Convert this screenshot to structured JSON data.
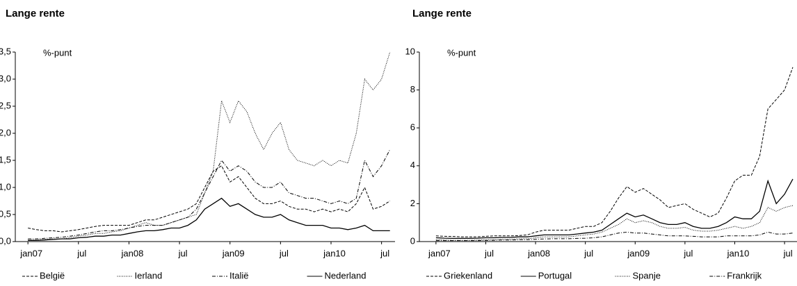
{
  "chart_data": [
    {
      "type": "line",
      "title": "Lange rente",
      "unit": "%-punt",
      "x": [
        0,
        1,
        2,
        3,
        4,
        5,
        6,
        7,
        8,
        9,
        10,
        11,
        12,
        13,
        14,
        15,
        16,
        17,
        18,
        19,
        20,
        21,
        22,
        23,
        24,
        25,
        26,
        27,
        28,
        29,
        30,
        31,
        32,
        33,
        34,
        35,
        36,
        37,
        38,
        39,
        40,
        41,
        42,
        43
      ],
      "xlim": [
        -1.5,
        43.6
      ],
      "xticks": [
        {
          "value": 0,
          "label": "jan07"
        },
        {
          "value": 6,
          "label": "jul"
        },
        {
          "value": 12,
          "label": "jan08"
        },
        {
          "value": 18,
          "label": "jul"
        },
        {
          "value": 24,
          "label": "jan09"
        },
        {
          "value": 30,
          "label": "jul"
        },
        {
          "value": 36,
          "label": "jan10"
        },
        {
          "value": 42,
          "label": "jul"
        }
      ],
      "ylim": [
        0,
        3.5
      ],
      "yticks": [
        {
          "value": 0,
          "label": "0,0"
        },
        {
          "value": 0.5,
          "label": "0,5"
        },
        {
          "value": 1,
          "label": "1,0"
        },
        {
          "value": 1.5,
          "label": "1,5"
        },
        {
          "value": 2,
          "label": "2,0"
        },
        {
          "value": 2.5,
          "label": "2,5"
        },
        {
          "value": 3,
          "label": "3,0"
        },
        {
          "value": 3.5,
          "label": "3,5"
        }
      ],
      "legend": "bottom",
      "series": [
        {
          "name": "België",
          "color": "#000000",
          "dash": "dashed",
          "values": [
            0.25,
            0.22,
            0.2,
            0.2,
            0.18,
            0.2,
            0.22,
            0.25,
            0.28,
            0.3,
            0.3,
            0.3,
            0.3,
            0.35,
            0.4,
            0.4,
            0.45,
            0.5,
            0.55,
            0.6,
            0.7,
            1.0,
            1.3,
            1.4,
            1.1,
            1.2,
            1.0,
            0.8,
            0.7,
            0.7,
            0.75,
            0.65,
            0.6,
            0.6,
            0.55,
            0.6,
            0.55,
            0.6,
            0.55,
            0.7,
            1.0,
            0.6,
            0.65,
            0.75
          ]
        },
        {
          "name": "Ierland",
          "color": "#000000",
          "dash": "dotted",
          "values": [
            0.03,
            0.03,
            0.04,
            0.05,
            0.05,
            0.07,
            0.1,
            0.12,
            0.15,
            0.15,
            0.18,
            0.2,
            0.25,
            0.3,
            0.35,
            0.3,
            0.3,
            0.35,
            0.4,
            0.45,
            0.5,
            0.9,
            1.3,
            2.6,
            2.2,
            2.6,
            2.4,
            2.0,
            1.7,
            2.0,
            2.2,
            1.7,
            1.5,
            1.45,
            1.4,
            1.5,
            1.4,
            1.5,
            1.45,
            2.0,
            3.0,
            2.8,
            3.0,
            3.5
          ]
        },
        {
          "name": "Italië",
          "color": "#000000",
          "dash": "dashdot",
          "values": [
            0.05,
            0.05,
            0.06,
            0.07,
            0.08,
            0.1,
            0.12,
            0.15,
            0.18,
            0.2,
            0.2,
            0.22,
            0.25,
            0.28,
            0.3,
            0.3,
            0.3,
            0.35,
            0.4,
            0.45,
            0.6,
            0.9,
            1.2,
            1.5,
            1.3,
            1.4,
            1.3,
            1.1,
            1.0,
            1.0,
            1.1,
            0.9,
            0.85,
            0.8,
            0.8,
            0.75,
            0.7,
            0.75,
            0.7,
            0.8,
            1.5,
            1.2,
            1.4,
            1.7
          ]
        },
        {
          "name": "Nederland",
          "color": "#000000",
          "dash": "solid",
          "values": [
            0.02,
            0.02,
            0.03,
            0.04,
            0.05,
            0.05,
            0.07,
            0.08,
            0.1,
            0.1,
            0.12,
            0.12,
            0.15,
            0.18,
            0.2,
            0.2,
            0.22,
            0.25,
            0.25,
            0.3,
            0.4,
            0.6,
            0.7,
            0.8,
            0.65,
            0.7,
            0.6,
            0.5,
            0.45,
            0.45,
            0.5,
            0.4,
            0.35,
            0.3,
            0.3,
            0.3,
            0.25,
            0.25,
            0.22,
            0.25,
            0.3,
            0.2,
            0.2,
            0.2
          ]
        }
      ]
    },
    {
      "type": "line",
      "title": "Lange rente",
      "unit": "%-punt",
      "x": [
        0,
        1,
        2,
        3,
        4,
        5,
        6,
        7,
        8,
        9,
        10,
        11,
        12,
        13,
        14,
        15,
        16,
        17,
        18,
        19,
        20,
        21,
        22,
        23,
        24,
        25,
        26,
        27,
        28,
        29,
        30,
        31,
        32,
        33,
        34,
        35,
        36,
        37,
        38,
        39,
        40,
        41,
        42,
        43
      ],
      "xlim": [
        -2,
        43.5
      ],
      "xticks": [
        {
          "value": 0,
          "label": "jan07"
        },
        {
          "value": 6,
          "label": "jul"
        },
        {
          "value": 12,
          "label": "jan08"
        },
        {
          "value": 18,
          "label": "jul"
        },
        {
          "value": 24,
          "label": "jan09"
        },
        {
          "value": 30,
          "label": "jul"
        },
        {
          "value": 36,
          "label": "jan10"
        },
        {
          "value": 42,
          "label": "jul"
        }
      ],
      "ylim": [
        0,
        10
      ],
      "yticks": [
        0,
        2,
        4,
        6,
        8,
        10
      ],
      "legend": "bottom",
      "series": [
        {
          "name": "Griekenland",
          "color": "#000000",
          "dash": "dashed",
          "values": [
            0.3,
            0.28,
            0.27,
            0.25,
            0.25,
            0.25,
            0.28,
            0.3,
            0.3,
            0.3,
            0.32,
            0.35,
            0.5,
            0.6,
            0.6,
            0.6,
            0.6,
            0.7,
            0.8,
            0.8,
            1.0,
            1.6,
            2.3,
            2.9,
            2.6,
            2.8,
            2.5,
            2.2,
            1.8,
            1.9,
            2.0,
            1.7,
            1.5,
            1.3,
            1.5,
            2.3,
            3.2,
            3.5,
            3.5,
            4.5,
            7.0,
            7.5,
            8.0,
            9.2
          ]
        },
        {
          "name": "Portugal",
          "color": "#000000",
          "dash": "solid",
          "values": [
            0.2,
            0.18,
            0.17,
            0.17,
            0.17,
            0.18,
            0.2,
            0.2,
            0.22,
            0.22,
            0.25,
            0.25,
            0.3,
            0.35,
            0.35,
            0.35,
            0.35,
            0.4,
            0.45,
            0.5,
            0.6,
            0.9,
            1.2,
            1.5,
            1.3,
            1.4,
            1.2,
            1.0,
            0.9,
            0.9,
            1.0,
            0.8,
            0.7,
            0.7,
            0.8,
            1.0,
            1.3,
            1.2,
            1.2,
            1.6,
            3.2,
            2.0,
            2.5,
            3.3
          ]
        },
        {
          "name": "Spanje",
          "color": "#000000",
          "dash": "dotted",
          "values": [
            0.1,
            0.08,
            0.07,
            0.07,
            0.07,
            0.08,
            0.1,
            0.1,
            0.12,
            0.12,
            0.15,
            0.15,
            0.2,
            0.25,
            0.25,
            0.25,
            0.25,
            0.3,
            0.35,
            0.4,
            0.5,
            0.7,
            0.9,
            1.2,
            1.0,
            1.1,
            1.0,
            0.8,
            0.7,
            0.7,
            0.75,
            0.6,
            0.55,
            0.55,
            0.6,
            0.7,
            0.8,
            0.7,
            0.8,
            1.0,
            1.8,
            1.6,
            1.8,
            1.9
          ]
        },
        {
          "name": "Frankrijk",
          "color": "#000000",
          "dash": "dashdot",
          "values": [
            0.05,
            0.05,
            0.05,
            0.05,
            0.05,
            0.05,
            0.06,
            0.07,
            0.08,
            0.08,
            0.1,
            0.1,
            0.12,
            0.14,
            0.15,
            0.15,
            0.15,
            0.17,
            0.18,
            0.2,
            0.25,
            0.35,
            0.45,
            0.5,
            0.45,
            0.45,
            0.4,
            0.35,
            0.3,
            0.3,
            0.3,
            0.28,
            0.25,
            0.25,
            0.25,
            0.3,
            0.3,
            0.3,
            0.3,
            0.35,
            0.5,
            0.4,
            0.4,
            0.45
          ]
        }
      ]
    }
  ]
}
